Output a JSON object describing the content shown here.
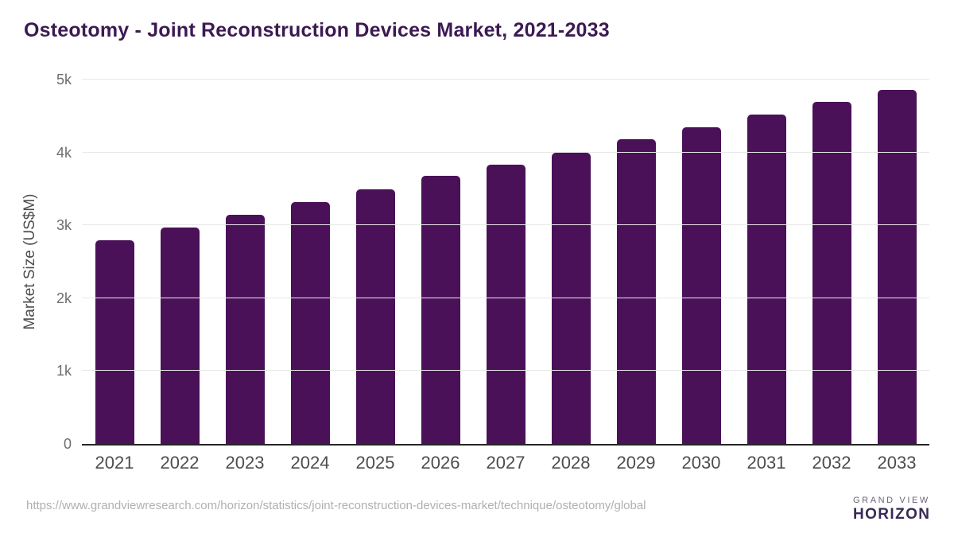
{
  "title": "Osteotomy - Joint Reconstruction Devices Market, 2021-2033",
  "chart_data": {
    "type": "bar",
    "title": "Osteotomy - Joint Reconstruction Devices Market, 2021-2033",
    "categories": [
      "2021",
      "2022",
      "2023",
      "2024",
      "2025",
      "2026",
      "2027",
      "2028",
      "2029",
      "2030",
      "2031",
      "2032",
      "2033"
    ],
    "values": [
      2800,
      2970,
      3140,
      3320,
      3490,
      3680,
      3830,
      4000,
      4180,
      4350,
      4520,
      4690,
      4860
    ],
    "xlabel": "",
    "ylabel": "Market Size (US$M)",
    "ylim": [
      0,
      5000
    ],
    "yticks": [
      0,
      1000,
      2000,
      3000,
      4000,
      5000
    ],
    "ytick_labels": [
      "0",
      "1k",
      "2k",
      "3k",
      "4k",
      "5k"
    ],
    "grid": "horizontal",
    "legend_position": "none",
    "bar_color": "#4a1158"
  },
  "footer": {
    "source_url": "https://www.grandviewresearch.com/horizon/statistics/joint-reconstruction-devices-market/technique/osteotomy/global",
    "logo": {
      "icon": "horizon-sunrise-icon",
      "icon_top_color": "#31204d",
      "icon_bottom_color": "#5ec1ec",
      "top_text": "GRAND VIEW",
      "bottom_text": "HORIZON"
    }
  },
  "colors": {
    "title_text": "#3c1a52",
    "axis_label": "#4d4d4d",
    "tick_label": "#6e6e6e",
    "gridline": "#e8e8e8",
    "axis_line": "#262626",
    "source_url_text": "#b0b0b0"
  }
}
